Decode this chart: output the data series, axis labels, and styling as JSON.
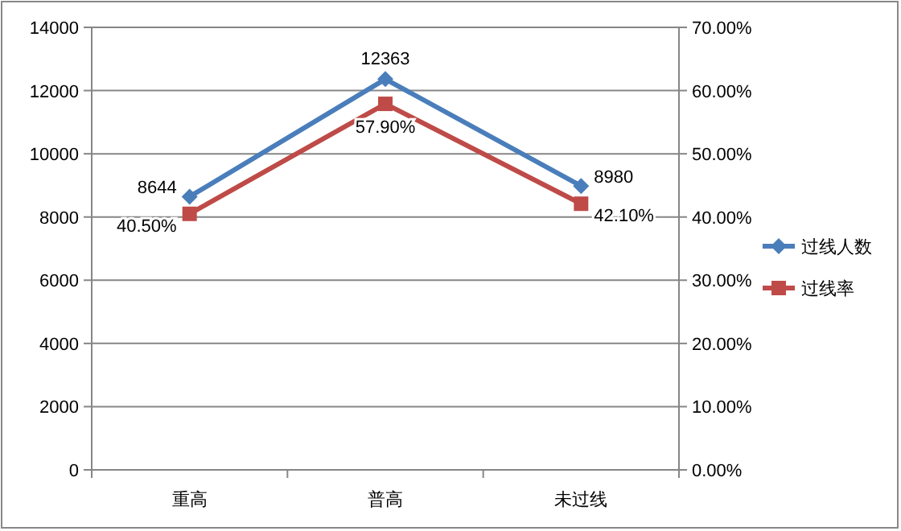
{
  "chart_data": {
    "type": "line",
    "categories": [
      "重高",
      "普高",
      "未过线"
    ],
    "series": [
      {
        "name": "过线人数",
        "color": "#4a7ebb",
        "values": [
          8644,
          12363,
          8980
        ],
        "axis": "y",
        "marker": "diamond",
        "value_labels": [
          "8644",
          "12363",
          "8980"
        ]
      },
      {
        "name": "过线率",
        "color": "#be4b48",
        "values": [
          40.5,
          57.9,
          42.1
        ],
        "axis": "y2",
        "marker": "square",
        "value_labels": [
          "40.50%",
          "57.90%",
          "42.10%"
        ]
      }
    ],
    "ylim": [
      0,
      14000
    ],
    "yticks": [
      0,
      2000,
      4000,
      6000,
      8000,
      10000,
      12000,
      14000
    ],
    "y2lim": [
      0,
      70
    ],
    "y2ticks": [
      {
        "value": 0,
        "label": "0.00%"
      },
      {
        "value": 10,
        "label": "10.00%"
      },
      {
        "value": 20,
        "label": "20.00%"
      },
      {
        "value": 30,
        "label": "30.00%"
      },
      {
        "value": 40,
        "label": "40.00%"
      },
      {
        "value": 50,
        "label": "50.00%"
      },
      {
        "value": 60,
        "label": "60.00%"
      },
      {
        "value": 70,
        "label": "70.00%"
      }
    ],
    "grid": "y",
    "legend": "right",
    "line_style": "solid"
  }
}
